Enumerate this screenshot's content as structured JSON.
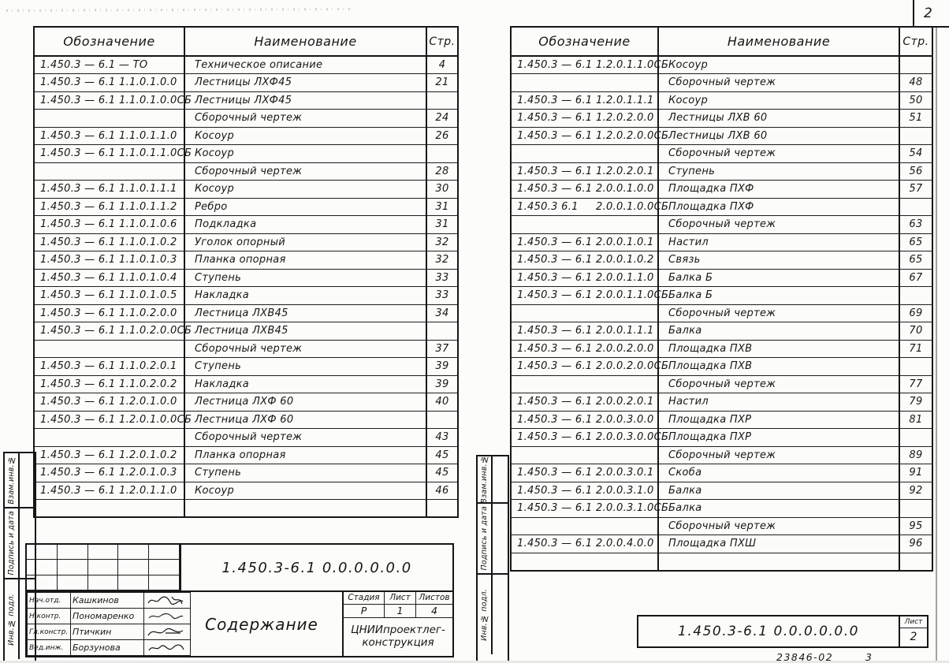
{
  "page": {
    "sheet_corner_number": "2",
    "footer_stamp": "23846-02",
    "footer_stamp_aux": "3"
  },
  "headers": {
    "designation": "Обозначение",
    "name": "Наименование",
    "page": "Стр."
  },
  "left_table": {
    "rows": [
      {
        "d1": "1.450.3 — 6.1 — ТО",
        "d2": "",
        "name": "Техническое описание",
        "page": "4"
      },
      {
        "d1": "1.450.3 — 6.1",
        "d2": "1.1.0.1.0.0",
        "name": "Лестницы ЛХФ45",
        "page": "21"
      },
      {
        "d1": "1.450.3 — 6.1",
        "d2": "1.1.0.1.0.0СБ",
        "name": "Лестницы ЛХФ45",
        "page": ""
      },
      {
        "d1": "",
        "d2": "",
        "name": "Сборочный чертеж",
        "page": "24"
      },
      {
        "d1": "1.450.3 — 6.1",
        "d2": "1.1.0.1.1.0",
        "name": "Косоур",
        "page": "26"
      },
      {
        "d1": "1.450.3 — 6.1",
        "d2": "1.1.0.1.1.0СБ",
        "name": "Косоур",
        "page": ""
      },
      {
        "d1": "",
        "d2": "",
        "name": "Сборочный чертеж",
        "page": "28"
      },
      {
        "d1": "1.450.3 — 6.1",
        "d2": "1.1.0.1.1.1",
        "name": "Косоур",
        "page": "30"
      },
      {
        "d1": "1.450.3 — 6.1",
        "d2": "1.1.0.1.1.2",
        "name": "Ребро",
        "page": "31"
      },
      {
        "d1": "1.450.3 — 6.1",
        "d2": "1.1.0.1.0.6",
        "name": "Подкладка",
        "page": "31"
      },
      {
        "d1": "1.450.3 — 6.1",
        "d2": "1.1.0.1.0.2",
        "name": "Уголок опорный",
        "page": "32"
      },
      {
        "d1": "1.450.3 — 6.1",
        "d2": "1.1.0.1.0.3",
        "name": "Планка опорная",
        "page": "32"
      },
      {
        "d1": "1.450.3 — 6.1",
        "d2": "1.1.0.1.0.4",
        "name": "Ступень",
        "page": "33"
      },
      {
        "d1": "1.450.3 — 6.1",
        "d2": "1.1.0.1.0.5",
        "name": "Накладка",
        "page": "33"
      },
      {
        "d1": "1.450.3 — 6.1",
        "d2": "1.1.0.2.0.0",
        "name": "Лестница ЛХВ45",
        "page": "34"
      },
      {
        "d1": "1.450.3 — 6.1",
        "d2": "1.1.0.2.0.0СБ",
        "name": "Лестница ЛХВ45",
        "page": ""
      },
      {
        "d1": "",
        "d2": "",
        "name": "Сборочный чертеж",
        "page": "37"
      },
      {
        "d1": "1.450.3 — 6.1",
        "d2": "1.1.0.2.0.1",
        "name": "Ступень",
        "page": "39"
      },
      {
        "d1": "1.450.3 — 6.1",
        "d2": "1.1.0.2.0.2",
        "name": "Накладка",
        "page": "39"
      },
      {
        "d1": "1.450.3 — 6.1",
        "d2": "1.2.0.1.0.0",
        "name": "Лестница ЛХФ 60",
        "page": "40"
      },
      {
        "d1": "1.450.3 — 6.1",
        "d2": "1.2.0.1.0.0СБ",
        "name": "Лестница ЛХФ 60",
        "page": ""
      },
      {
        "d1": "",
        "d2": "",
        "name": "Сборочный чертеж",
        "page": "43"
      },
      {
        "d1": "1.450.3 — 6.1",
        "d2": "1.2.0.1.0.2",
        "name": "Планка опорная",
        "page": "45"
      },
      {
        "d1": "1.450.3 — 6.1",
        "d2": "1.2.0.1.0.3",
        "name": "Ступень",
        "page": "45"
      },
      {
        "d1": "1.450.3 — 6.1",
        "d2": "1.2.0.1.1.0",
        "name": "Косоур",
        "page": "46"
      },
      {
        "d1": "",
        "d2": "",
        "name": "",
        "page": ""
      }
    ]
  },
  "right_table": {
    "rows": [
      {
        "d1": "1.450.3 — 6.1",
        "d2": "1.2.0.1.1.0СБ",
        "name": "Косоур",
        "page": ""
      },
      {
        "d1": "",
        "d2": "",
        "name": "Сборочный чертеж",
        "page": "48"
      },
      {
        "d1": "1.450.3 — 6.1",
        "d2": "1.2.0.1.1.1",
        "name": "Косоур",
        "page": "50"
      },
      {
        "d1": "1.450.3 — 6.1",
        "d2": "1.2.0.2.0.0",
        "name": "Лестницы ЛХВ 60",
        "page": "51"
      },
      {
        "d1": "1.450.3 — 6.1",
        "d2": "1.2.0.2.0.0СБ",
        "name": "Лестницы ЛХВ 60",
        "page": ""
      },
      {
        "d1": "",
        "d2": "",
        "name": "Сборочный чертеж",
        "page": "54"
      },
      {
        "d1": "1.450.3 — 6.1",
        "d2": "1.2.0.2.0.1",
        "name": "Ступень",
        "page": "56"
      },
      {
        "d1": "1.450.3 — 6.1",
        "d2": "2.0.0.1.0.0",
        "name": "Площадка ПХФ",
        "page": "57"
      },
      {
        "d1": "1.450.3   6.1",
        "d2": "2.0.0.1.0.0СБ",
        "name": "Площадка ПХФ",
        "page": ""
      },
      {
        "d1": "",
        "d2": "",
        "name": "Сборочный чертеж",
        "page": "63"
      },
      {
        "d1": "1.450.3 — 6.1",
        "d2": "2.0.0.1.0.1",
        "name": "Настил",
        "page": "65"
      },
      {
        "d1": "1.450.3 — 6.1",
        "d2": "2.0.0.1.0.2",
        "name": "Связь",
        "page": "65"
      },
      {
        "d1": "1.450.3 — 6.1",
        "d2": "2.0.0.1.1.0",
        "name": "Балка Б",
        "page": "67"
      },
      {
        "d1": "1.450.3 — 6.1",
        "d2": "2.0.0.1.1.0СБ",
        "name": "Балка Б",
        "page": ""
      },
      {
        "d1": "",
        "d2": "",
        "name": "Сборочный чертеж",
        "page": "69"
      },
      {
        "d1": "1.450.3 — 6.1",
        "d2": "2.0.0.1.1.1",
        "name": "Балка",
        "page": "70"
      },
      {
        "d1": "1.450.3 — 6.1",
        "d2": "2.0.0.2.0.0",
        "name": "Площадка ПХВ",
        "page": "71"
      },
      {
        "d1": "1.450.3 — 6.1",
        "d2": "2.0.0.2.0.0СБ",
        "name": "Площадка ПХВ",
        "page": ""
      },
      {
        "d1": "",
        "d2": "",
        "name": "Сборочный чертеж",
        "page": "77"
      },
      {
        "d1": "1.450.3 — 6.1",
        "d2": "2.0.0.2.0.1",
        "name": "Настил",
        "page": "79"
      },
      {
        "d1": "1.450.3 — 6.1",
        "d2": "2.0.0.3.0.0",
        "name": "Площадка ПХР",
        "page": "81"
      },
      {
        "d1": "1.450.3 — 6.1",
        "d2": "2.0.0.3.0.0СБ",
        "name": "Площадка ПХР",
        "page": ""
      },
      {
        "d1": "",
        "d2": "",
        "name": "Сборочный чертеж",
        "page": "89"
      },
      {
        "d1": "1.450.3 — 6.1",
        "d2": "2.0.0.3.0.1",
        "name": "Скоба",
        "page": "91"
      },
      {
        "d1": "1.450.3 — 6.1",
        "d2": "2.0.0.3.1.0",
        "name": "Балка",
        "page": "92"
      },
      {
        "d1": "1.450.3 — 6.1",
        "d2": "2.0.0.3.1.0СБ",
        "name": "Балка",
        "page": ""
      },
      {
        "d1": "",
        "d2": "",
        "name": "Сборочный чертеж",
        "page": "95"
      },
      {
        "d1": "1.450.3 — 6.1",
        "d2": "2.0.0.4.0.0",
        "name": "Площадка ПХШ",
        "page": "96"
      },
      {
        "d1": "",
        "d2": "",
        "name": "",
        "page": ""
      }
    ]
  },
  "left_titleblock": {
    "doc_number": "1.450.3-6.1 0.0.0.0.0.0",
    "title": "Содержание",
    "stage_label": "Стадия",
    "sheet_label": "Лист",
    "sheets_label": "Листов",
    "stage": "Р",
    "sheet": "1",
    "sheets": "4",
    "organization": "ЦНИИпроектлег-конструкция",
    "signatures": [
      {
        "role": "Нач.отд.",
        "name": "Кашкинов"
      },
      {
        "role": "Н.контр.",
        "name": "Пономаренко"
      },
      {
        "role": "Гл.констр.",
        "name": "Птичкин"
      },
      {
        "role": "Вед.инж.",
        "name": "Борзунова"
      }
    ]
  },
  "right_titleblock": {
    "doc_number": "1.450.3-6.1 0.0.0.0.0.0",
    "sheet_label": "Лист",
    "sheet": "2"
  },
  "side_stamp": {
    "labels": [
      "Взам.инв.№",
      "Подпись и дата",
      "Инв.№ подл."
    ]
  }
}
